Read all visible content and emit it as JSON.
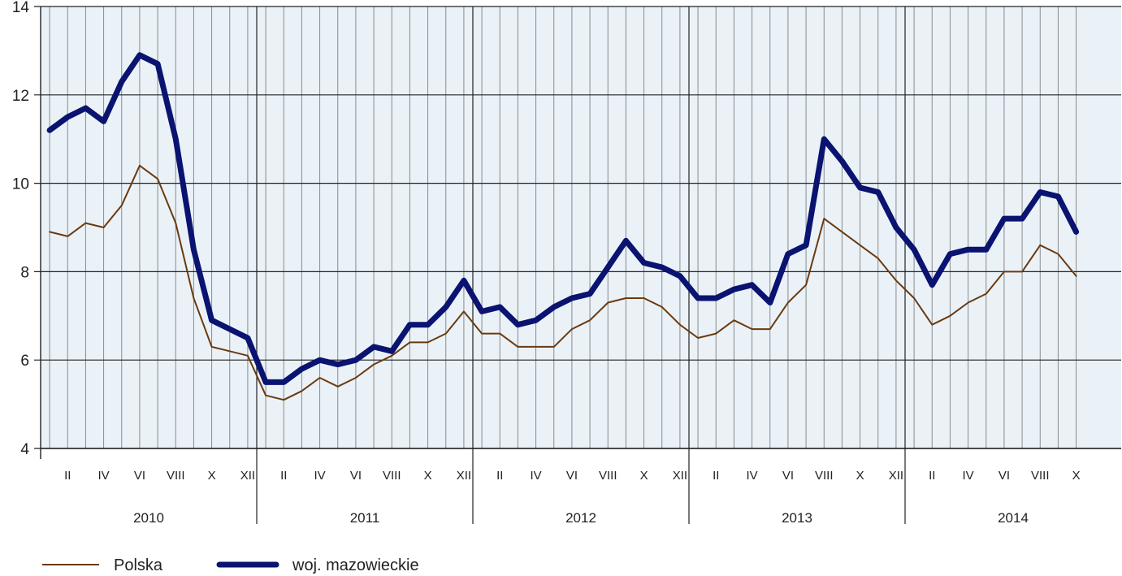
{
  "chart_data": {
    "type": "line",
    "title": "",
    "xlabel": "",
    "ylabel": "",
    "ylim": [
      4,
      14
    ],
    "yticks": [
      4,
      6,
      8,
      10,
      12,
      14
    ],
    "grid": true,
    "legend_position": "bottom-left",
    "years": [
      "2010",
      "2011",
      "2012",
      "2013",
      "2014"
    ],
    "month_tick_labels": [
      "II",
      "IV",
      "VI",
      "VIII",
      "X",
      "XII"
    ],
    "x": [
      "2010-01",
      "2010-02",
      "2010-03",
      "2010-04",
      "2010-05",
      "2010-06",
      "2010-07",
      "2010-08",
      "2010-09",
      "2010-10",
      "2010-11",
      "2010-12",
      "2011-01",
      "2011-02",
      "2011-03",
      "2011-04",
      "2011-05",
      "2011-06",
      "2011-07",
      "2011-08",
      "2011-09",
      "2011-10",
      "2011-11",
      "2011-12",
      "2012-01",
      "2012-02",
      "2012-03",
      "2012-04",
      "2012-05",
      "2012-06",
      "2012-07",
      "2012-08",
      "2012-09",
      "2012-10",
      "2012-11",
      "2012-12",
      "2013-01",
      "2013-02",
      "2013-03",
      "2013-04",
      "2013-05",
      "2013-06",
      "2013-07",
      "2013-08",
      "2013-09",
      "2013-10",
      "2013-11",
      "2013-12",
      "2014-01",
      "2014-02",
      "2014-03",
      "2014-04",
      "2014-05",
      "2014-06",
      "2014-07",
      "2014-08",
      "2014-09",
      "2014-10"
    ],
    "series": [
      {
        "name": "Polska",
        "color": "#6b3a0e",
        "values": [
          8.9,
          8.8,
          9.1,
          9.0,
          9.5,
          10.4,
          10.1,
          9.1,
          7.4,
          6.3,
          6.2,
          6.1,
          5.2,
          5.1,
          5.3,
          5.6,
          5.4,
          5.6,
          5.9,
          6.1,
          6.4,
          6.4,
          6.6,
          7.1,
          6.6,
          6.6,
          6.3,
          6.3,
          6.3,
          6.7,
          6.9,
          7.3,
          7.4,
          7.4,
          7.2,
          6.8,
          6.5,
          6.6,
          6.9,
          6.7,
          6.7,
          7.3,
          7.7,
          9.2,
          8.9,
          8.6,
          8.3,
          7.8,
          7.4,
          6.8,
          7.0,
          7.3,
          7.5,
          8.0,
          8.0,
          8.6,
          8.4,
          7.9
        ]
      },
      {
        "name": "woj. mazowieckie",
        "color": "#0a1370",
        "values": [
          11.2,
          11.5,
          11.7,
          11.4,
          12.3,
          12.9,
          12.7,
          11.0,
          8.5,
          6.9,
          6.7,
          6.5,
          5.5,
          5.5,
          5.8,
          6.0,
          5.9,
          6.0,
          6.3,
          6.2,
          6.8,
          6.8,
          7.2,
          7.8,
          7.1,
          7.2,
          6.8,
          6.9,
          7.2,
          7.4,
          7.5,
          8.1,
          8.7,
          8.2,
          8.1,
          7.9,
          7.4,
          7.4,
          7.6,
          7.7,
          7.3,
          8.4,
          8.6,
          11.0,
          10.5,
          9.9,
          9.8,
          9.0,
          8.5,
          7.7,
          8.4,
          8.5,
          8.5,
          9.2,
          9.2,
          9.8,
          9.7,
          8.9
        ]
      }
    ]
  },
  "colors": {
    "plot_background": "#eaf2f8",
    "month_grid": "#8a8a8a",
    "major_grid": "#222222"
  }
}
